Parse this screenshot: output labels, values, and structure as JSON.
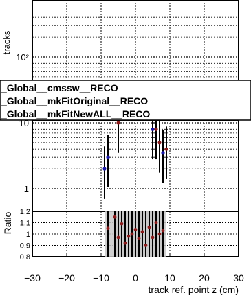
{
  "legend": [
    {
      "label": "_Global__cmssw__RECO",
      "color": "#1a1aaa"
    },
    {
      "label": "_Global__mkFitOriginal__RECO",
      "color": "#8b1a1a"
    },
    {
      "label": "_Global__mkFitNewALL__RECO",
      "color": "#8b1a1a"
    }
  ],
  "chart_data": [
    {
      "type": "scatter",
      "panel": "main",
      "ylabel": "tracks",
      "xlim": [
        -30,
        30
      ],
      "ylim": [
        0.6,
        400
      ],
      "yscale": "log",
      "y_tick_labels": [
        "1",
        "10",
        "10²"
      ],
      "grid": true,
      "series": [
        {
          "name": "_Global__cmssw__RECO",
          "color": "#1a1aaa",
          "points": [
            [
              -9,
              2
            ],
            [
              -8,
              3
            ],
            [
              -1,
              25
            ],
            [
              5,
              8
            ],
            [
              8,
              3.5
            ]
          ]
        },
        {
          "name": "_Global__mkFitOriginal__RECO",
          "color": "#8b1a1a",
          "points": [
            [
              -7,
              12
            ],
            [
              -5,
              10
            ],
            [
              0,
              22
            ],
            [
              1,
              35
            ],
            [
              3,
              20
            ],
            [
              6,
              8
            ],
            [
              7,
              5
            ],
            [
              9,
              4
            ]
          ]
        }
      ]
    },
    {
      "type": "scatter",
      "panel": "ratio",
      "xlabel": "track ref. point z (cm)",
      "ylabel": "Ratio",
      "xlim": [
        -30,
        30
      ],
      "ylim": [
        0.8,
        1.2
      ],
      "x_tick_labels": [
        "−30",
        "−20",
        "−10",
        "0",
        "10",
        "20",
        "30"
      ],
      "y_tick_labels": [
        "0.8",
        "0.9",
        "1",
        "1.1",
        "1.2"
      ],
      "grid": true,
      "series": [
        {
          "name": "ratio",
          "color": "#8b1a1a",
          "points": [
            [
              -8,
              1.05
            ],
            [
              -6,
              1.15
            ],
            [
              -5,
              0.97
            ],
            [
              -4,
              1.09
            ],
            [
              -3,
              0.92
            ],
            [
              -2,
              0.98
            ],
            [
              -1,
              1.0
            ],
            [
              0,
              1.04
            ],
            [
              1,
              0.96
            ],
            [
              2,
              1.02
            ],
            [
              3,
              0.9
            ],
            [
              4,
              1.06
            ],
            [
              5,
              0.97
            ],
            [
              6,
              1.1
            ],
            [
              7,
              1.0
            ],
            [
              8,
              1.03
            ]
          ]
        }
      ]
    }
  ]
}
